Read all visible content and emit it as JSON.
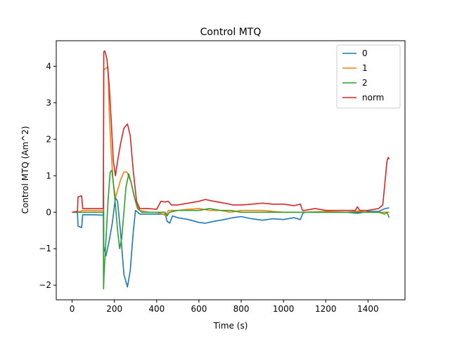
{
  "chart_data": {
    "type": "line",
    "title": "Control MTQ",
    "xlabel": "Time (s)",
    "ylabel": "Control MTQ (Am^2)",
    "xlim": [
      -75,
      1575
    ],
    "ylim": [
      -2.4,
      4.7
    ],
    "xticks": [
      0,
      200,
      400,
      600,
      800,
      1000,
      1200,
      1400
    ],
    "yticks": [
      -2,
      -1,
      0,
      1,
      2,
      3,
      4
    ],
    "grid": false,
    "legend": "top-right",
    "series": [
      {
        "name": "0",
        "color": "#1f77b4",
        "points": [
          [
            0,
            0
          ],
          [
            25,
            0
          ],
          [
            28,
            -0.38
          ],
          [
            45,
            -0.42
          ],
          [
            50,
            -0.07
          ],
          [
            100,
            -0.07
          ],
          [
            148,
            -0.08
          ],
          [
            149,
            1.1
          ],
          [
            150,
            -0.95
          ],
          [
            160,
            -1.2
          ],
          [
            175,
            -0.8
          ],
          [
            190,
            -0.3
          ],
          [
            205,
            0.4
          ],
          [
            215,
            0.3
          ],
          [
            230,
            -0.6
          ],
          [
            245,
            -1.7
          ],
          [
            262,
            -2.05
          ],
          [
            275,
            -1.6
          ],
          [
            290,
            -0.5
          ],
          [
            300,
            0.05
          ],
          [
            320,
            -0.05
          ],
          [
            360,
            -0.05
          ],
          [
            400,
            -0.05
          ],
          [
            440,
            -0.05
          ],
          [
            450,
            -0.25
          ],
          [
            462,
            -0.3
          ],
          [
            475,
            -0.1
          ],
          [
            500,
            -0.15
          ],
          [
            550,
            -0.2
          ],
          [
            600,
            -0.28
          ],
          [
            630,
            -0.3
          ],
          [
            670,
            -0.25
          ],
          [
            720,
            -0.2
          ],
          [
            760,
            -0.15
          ],
          [
            800,
            -0.12
          ],
          [
            850,
            -0.18
          ],
          [
            900,
            -0.22
          ],
          [
            950,
            -0.18
          ],
          [
            1000,
            -0.2
          ],
          [
            1050,
            -0.15
          ],
          [
            1080,
            -0.2
          ],
          [
            1090,
            -0.05
          ],
          [
            1100,
            0
          ],
          [
            1200,
            0
          ],
          [
            1300,
            0
          ],
          [
            1350,
            -0.03
          ],
          [
            1400,
            0.02
          ],
          [
            1450,
            0.02
          ],
          [
            1480,
            0.1
          ],
          [
            1500,
            0.12
          ]
        ]
      },
      {
        "name": "1",
        "color": "#ff7f0e",
        "points": [
          [
            0,
            0
          ],
          [
            25,
            0
          ],
          [
            50,
            0.05
          ],
          [
            100,
            0.05
          ],
          [
            148,
            0.05
          ],
          [
            150,
            3.9
          ],
          [
            160,
            3.95
          ],
          [
            170,
            3.98
          ],
          [
            175,
            2.8
          ],
          [
            185,
            1.6
          ],
          [
            195,
            0.8
          ],
          [
            205,
            0.4
          ],
          [
            215,
            0.6
          ],
          [
            230,
            0.9
          ],
          [
            245,
            1.1
          ],
          [
            260,
            1.1
          ],
          [
            280,
            0.8
          ],
          [
            300,
            0.3
          ],
          [
            320,
            0.05
          ],
          [
            360,
            0
          ],
          [
            400,
            0
          ],
          [
            430,
            -0.05
          ],
          [
            445,
            -0.1
          ],
          [
            455,
            0.05
          ],
          [
            470,
            0.05
          ],
          [
            500,
            0.05
          ],
          [
            550,
            0.08
          ],
          [
            600,
            0.1
          ],
          [
            650,
            0.05
          ],
          [
            700,
            0.05
          ],
          [
            750,
            0
          ],
          [
            800,
            0.05
          ],
          [
            850,
            0.05
          ],
          [
            900,
            0.05
          ],
          [
            950,
            0.02
          ],
          [
            1000,
            0
          ],
          [
            1050,
            0
          ],
          [
            1100,
            0
          ],
          [
            1200,
            0.02
          ],
          [
            1300,
            0
          ],
          [
            1350,
            0.03
          ],
          [
            1400,
            0
          ],
          [
            1450,
            0
          ],
          [
            1500,
            0
          ]
        ]
      },
      {
        "name": "2",
        "color": "#2ca02c",
        "points": [
          [
            0,
            0
          ],
          [
            25,
            0
          ],
          [
            50,
            0
          ],
          [
            100,
            0
          ],
          [
            140,
            0
          ],
          [
            148,
            0
          ],
          [
            149,
            -2.1
          ],
          [
            152,
            -1.6
          ],
          [
            160,
            -0.8
          ],
          [
            170,
            0.3
          ],
          [
            180,
            1.1
          ],
          [
            188,
            1.15
          ],
          [
            195,
            0.8
          ],
          [
            205,
            0.2
          ],
          [
            215,
            -0.5
          ],
          [
            225,
            -1.0
          ],
          [
            235,
            -0.7
          ],
          [
            245,
            0
          ],
          [
            255,
            0.7
          ],
          [
            268,
            1.05
          ],
          [
            280,
            0.8
          ],
          [
            295,
            0.4
          ],
          [
            310,
            0.1
          ],
          [
            330,
            0
          ],
          [
            360,
            0
          ],
          [
            400,
            0
          ],
          [
            440,
            0
          ],
          [
            450,
            -0.1
          ],
          [
            460,
            0
          ],
          [
            500,
            0.05
          ],
          [
            550,
            0.05
          ],
          [
            600,
            0.05
          ],
          [
            650,
            0.1
          ],
          [
            700,
            0.05
          ],
          [
            750,
            0.05
          ],
          [
            800,
            0
          ],
          [
            850,
            0
          ],
          [
            900,
            0
          ],
          [
            1000,
            0
          ],
          [
            1050,
            0
          ],
          [
            1100,
            0
          ],
          [
            1200,
            0
          ],
          [
            1300,
            0
          ],
          [
            1400,
            0
          ],
          [
            1450,
            0
          ],
          [
            1480,
            -0.05
          ],
          [
            1490,
            0
          ],
          [
            1500,
            -0.15
          ]
        ]
      },
      {
        "name": "norm",
        "color": "#d62728",
        "points": [
          [
            0,
            0
          ],
          [
            25,
            0.02
          ],
          [
            28,
            0.42
          ],
          [
            45,
            0.45
          ],
          [
            50,
            0.1
          ],
          [
            100,
            0.1
          ],
          [
            148,
            0.1
          ],
          [
            150,
            4.4
          ],
          [
            155,
            4.42
          ],
          [
            165,
            4.2
          ],
          [
            175,
            3.5
          ],
          [
            185,
            2.5
          ],
          [
            195,
            1.4
          ],
          [
            205,
            1.0
          ],
          [
            215,
            1.4
          ],
          [
            230,
            1.9
          ],
          [
            245,
            2.3
          ],
          [
            262,
            2.42
          ],
          [
            275,
            2.1
          ],
          [
            290,
            1.1
          ],
          [
            305,
            0.3
          ],
          [
            320,
            0.1
          ],
          [
            360,
            0.1
          ],
          [
            400,
            0.08
          ],
          [
            420,
            0.3
          ],
          [
            440,
            0.28
          ],
          [
            455,
            0.3
          ],
          [
            470,
            0.2
          ],
          [
            500,
            0.2
          ],
          [
            550,
            0.25
          ],
          [
            600,
            0.3
          ],
          [
            630,
            0.35
          ],
          [
            670,
            0.3
          ],
          [
            720,
            0.25
          ],
          [
            760,
            0.2
          ],
          [
            800,
            0.2
          ],
          [
            850,
            0.22
          ],
          [
            900,
            0.25
          ],
          [
            950,
            0.22
          ],
          [
            1000,
            0.22
          ],
          [
            1050,
            0.18
          ],
          [
            1080,
            0.22
          ],
          [
            1090,
            0.05
          ],
          [
            1100,
            0.05
          ],
          [
            1150,
            0.1
          ],
          [
            1200,
            0.05
          ],
          [
            1300,
            0.05
          ],
          [
            1340,
            0.05
          ],
          [
            1350,
            0.15
          ],
          [
            1360,
            0.05
          ],
          [
            1400,
            0.05
          ],
          [
            1450,
            0.1
          ],
          [
            1470,
            0.2
          ],
          [
            1480,
            0.8
          ],
          [
            1490,
            1.4
          ],
          [
            1495,
            1.5
          ],
          [
            1500,
            1.45
          ]
        ]
      }
    ]
  }
}
